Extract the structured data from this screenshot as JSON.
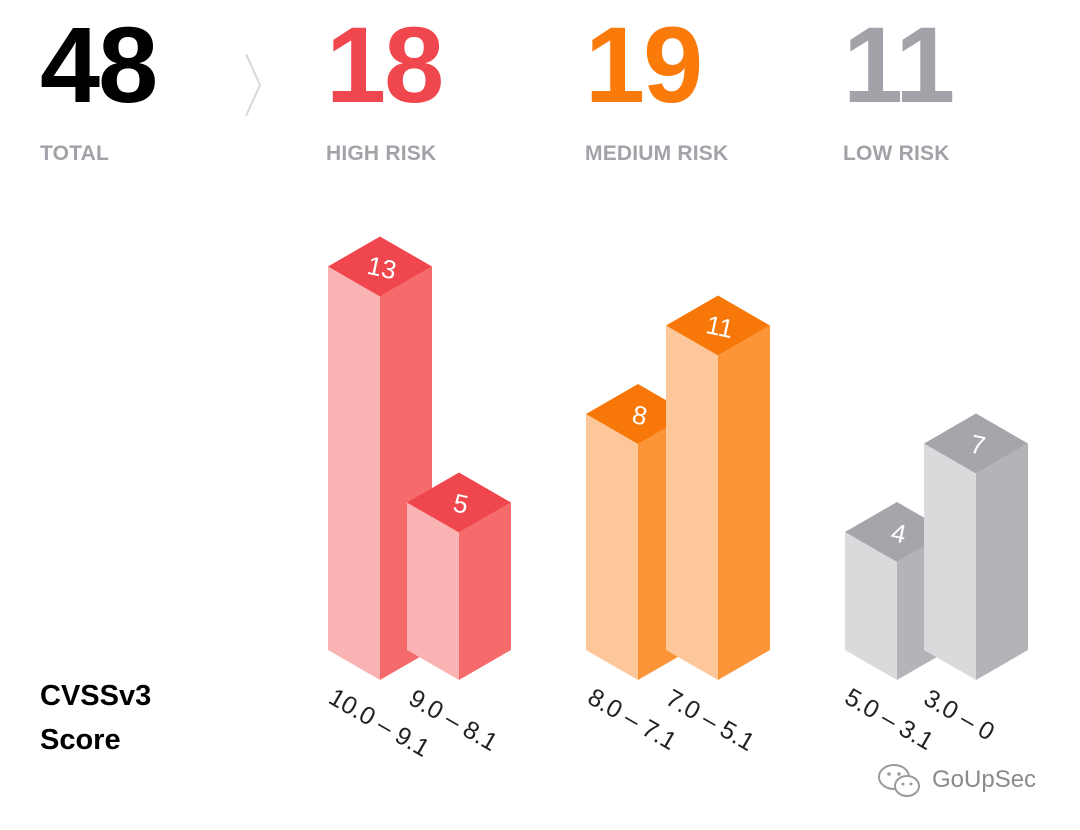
{
  "colors": {
    "total": "#000000",
    "high": "#f0464d",
    "medium": "#fa7a0a",
    "low": "#a2a2a8",
    "label": "#a2a2a8"
  },
  "summary": {
    "total": {
      "value": "48",
      "label": "TOTAL"
    },
    "high": {
      "value": "18",
      "label": "HIGH RISK"
    },
    "medium": {
      "value": "19",
      "label": "MEDIUM RISK"
    },
    "low": {
      "value": "11",
      "label": "LOW RISK"
    }
  },
  "axis_title_line1": "CVSSv3",
  "axis_title_line2": "Score",
  "watermark": "GoUpSec",
  "chart_data": {
    "type": "bar",
    "title": "",
    "xlabel": "CVSSv3 Score",
    "ylabel": "",
    "categories": [
      "10.0 – 9.1",
      "9.0 – 8.1",
      "8.0 – 7.1",
      "7.0 – 5.1",
      "5.0 – 3.1",
      "3.0 – 0"
    ],
    "groups": [
      "High Risk",
      "High Risk",
      "Medium Risk",
      "Medium Risk",
      "Low Risk",
      "Low Risk"
    ],
    "values": [
      13,
      5,
      8,
      11,
      4,
      7
    ],
    "ylim": [
      0,
      13
    ]
  }
}
